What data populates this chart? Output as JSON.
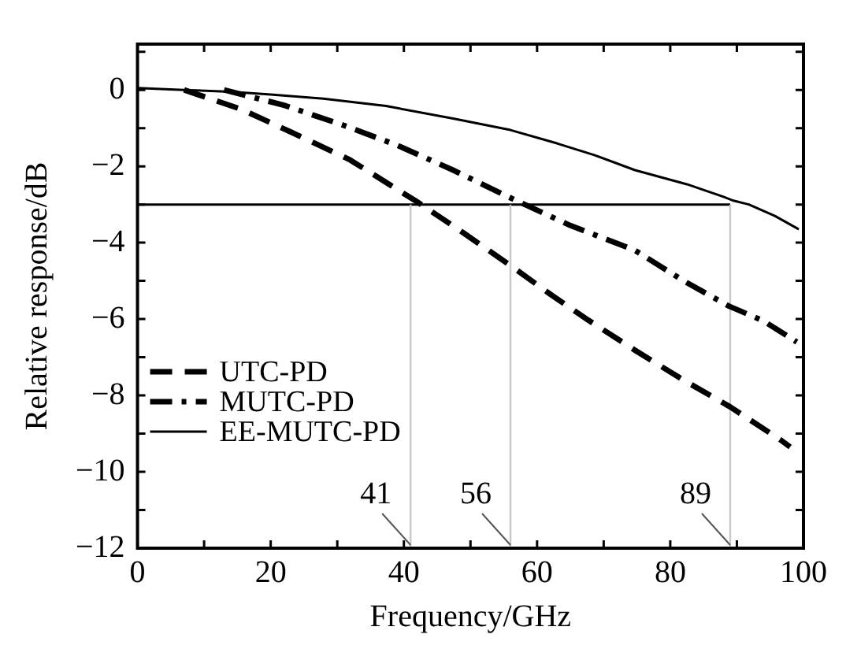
{
  "chart_data": {
    "type": "line",
    "xlabel": "Frequency/GHz",
    "ylabel": "Relative response/dB",
    "xlim": [
      0,
      100
    ],
    "xticks": [
      0,
      20,
      40,
      60,
      80,
      100
    ],
    "ylim": [
      -12,
      1.2
    ],
    "yticks": [
      0,
      -2,
      -4,
      -6,
      -8,
      -10,
      -12
    ],
    "grid": false,
    "legend": "left",
    "marker": "none",
    "series": [
      {
        "name": "UTC-PD",
        "color": "#000000",
        "line_style": "dashed",
        "x": [
          7,
          15.5,
          23,
          31.9,
          41.9,
          49,
          56,
          62,
          67.7,
          75,
          82,
          89,
          96.6,
          98
        ],
        "values": [
          0,
          -0.5,
          -1.1,
          -1.83,
          -2.92,
          -3.75,
          -4.6,
          -5.35,
          -6.03,
          -6.85,
          -7.6,
          -8.3,
          -9.17,
          -9.35
        ]
      },
      {
        "name": "MUTC-PD",
        "color": "#000000",
        "line_style": "dashdot",
        "x": [
          13,
          22,
          31,
          39,
          47.4,
          56.3,
          65,
          74.7,
          82,
          88.8,
          94,
          99
        ],
        "values": [
          0,
          -0.4,
          -0.93,
          -1.45,
          -2.1,
          -2.85,
          -3.55,
          -4.2,
          -5.0,
          -5.66,
          -6.05,
          -6.6
        ]
      },
      {
        "name": "EE-MUTC-PD",
        "color": "#000000",
        "line_style": "solid",
        "x": [
          0,
          7,
          14,
          20,
          27.9,
          37.3,
          47.4,
          56,
          63,
          68.5,
          74.7,
          82.5,
          88,
          89.5,
          91.8,
          95.7,
          99.3
        ],
        "values": [
          0.05,
          0,
          -0.05,
          -0.12,
          -0.23,
          -0.42,
          -0.75,
          -1.05,
          -1.4,
          -1.7,
          -2.1,
          -2.47,
          -2.8,
          -2.9,
          -3.0,
          -3.3,
          -3.65
        ]
      }
    ],
    "ref_lines": [
      {
        "axis": "y",
        "value": -3,
        "color": "#000000"
      },
      {
        "axis": "x",
        "value": 41,
        "color": "#c8c8c8"
      },
      {
        "axis": "x",
        "value": 56,
        "color": "#c8c8c8"
      },
      {
        "axis": "x",
        "value": 89,
        "color": "#c8c8c8"
      }
    ],
    "annotations": [
      {
        "text": "41",
        "x": 41,
        "y": -12
      },
      {
        "text": "56",
        "x": 56,
        "y": -12
      },
      {
        "text": "89",
        "x": 89,
        "y": -12
      }
    ]
  }
}
